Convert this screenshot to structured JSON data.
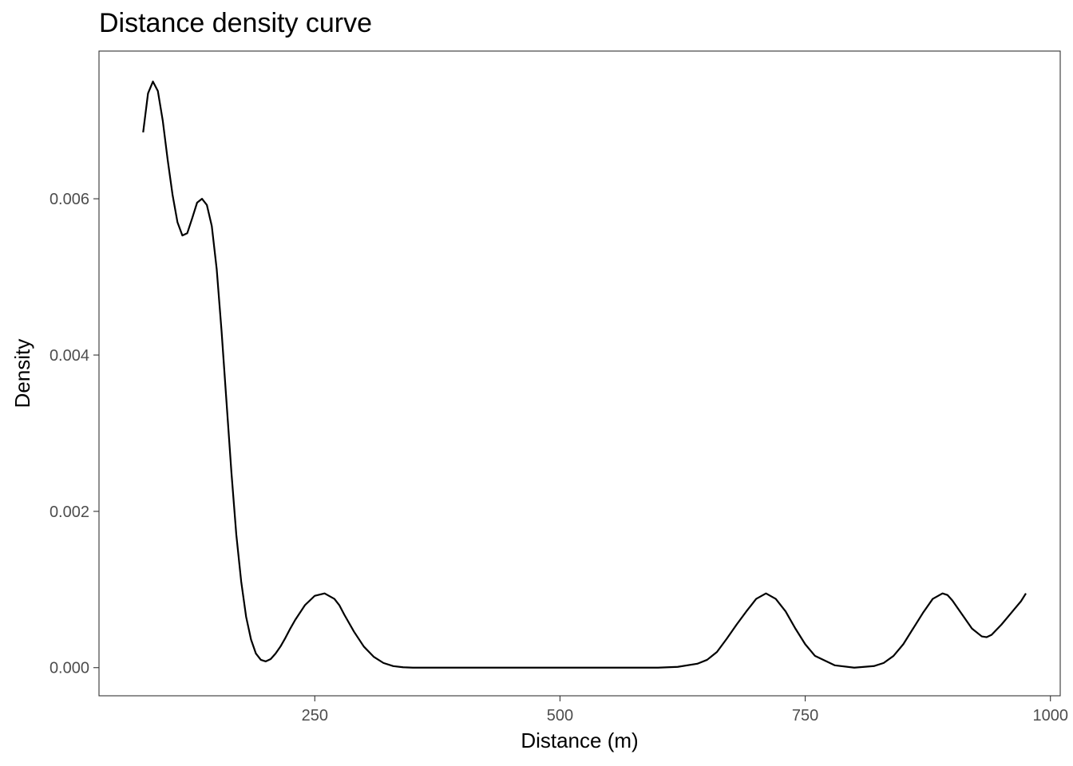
{
  "chart_data": {
    "type": "line",
    "title": "Distance density curve",
    "xlabel": "Distance (m)",
    "ylabel": "Density",
    "xlim": [
      30,
      1010
    ],
    "ylim": [
      -0.00036,
      0.00789
    ],
    "x_ticks": [
      250,
      500,
      750,
      1000
    ],
    "x_tick_labels": [
      "250",
      "500",
      "750",
      "1000"
    ],
    "y_ticks": [
      0,
      0.002,
      0.004,
      0.006
    ],
    "y_tick_labels": [
      "0.000",
      "0.002",
      "0.004",
      "0.006"
    ],
    "grid": false,
    "legend": "none",
    "colors": {
      "line": "#000000",
      "border": "#333333",
      "tick_label": "#4d4d4d"
    },
    "series": [
      {
        "x": [
          75,
          80,
          85,
          90,
          95,
          100,
          105,
          110,
          115,
          120,
          125,
          130,
          135,
          140,
          145,
          150,
          155,
          160,
          165,
          170,
          175,
          180,
          185,
          190,
          195,
          200,
          205,
          210,
          215,
          220,
          225,
          230,
          240,
          250,
          260,
          270,
          275,
          280,
          290,
          300,
          310,
          320,
          330,
          340,
          350,
          360,
          380,
          400,
          450,
          500,
          550,
          600,
          620,
          640,
          650,
          660,
          670,
          680,
          690,
          695,
          700,
          710,
          720,
          730,
          740,
          750,
          760,
          780,
          800,
          820,
          830,
          840,
          850,
          860,
          870,
          880,
          890,
          895,
          900,
          910,
          920,
          930,
          935,
          940,
          950,
          960,
          970,
          975
        ],
        "y": [
          0.00685,
          0.00735,
          0.0075,
          0.00738,
          0.007,
          0.0065,
          0.00605,
          0.0057,
          0.00553,
          0.00556,
          0.00575,
          0.00595,
          0.006,
          0.00592,
          0.00565,
          0.0051,
          0.0043,
          0.0034,
          0.0025,
          0.0017,
          0.0011,
          0.00065,
          0.00036,
          0.00018,
          0.0001,
          8e-05,
          0.00011,
          0.00018,
          0.00027,
          0.00038,
          0.0005,
          0.00061,
          0.0008,
          0.00092,
          0.00095,
          0.00088,
          0.0008,
          0.00068,
          0.00046,
          0.00027,
          0.00014,
          6e-05,
          2e-05,
          5e-06,
          0.0,
          0.0,
          0.0,
          0.0,
          0.0,
          0.0,
          0.0,
          0.0,
          1e-05,
          5e-05,
          0.0001,
          0.0002,
          0.00037,
          0.00055,
          0.00072,
          0.0008,
          0.00088,
          0.00095,
          0.00088,
          0.00072,
          0.0005,
          0.0003,
          0.00015,
          3e-05,
          0.0,
          2e-05,
          6e-05,
          0.00015,
          0.0003,
          0.0005,
          0.0007,
          0.00088,
          0.00095,
          0.00093,
          0.00086,
          0.00068,
          0.0005,
          0.0004,
          0.00039,
          0.00042,
          0.00055,
          0.0007,
          0.00085,
          0.00095
        ]
      }
    ]
  }
}
